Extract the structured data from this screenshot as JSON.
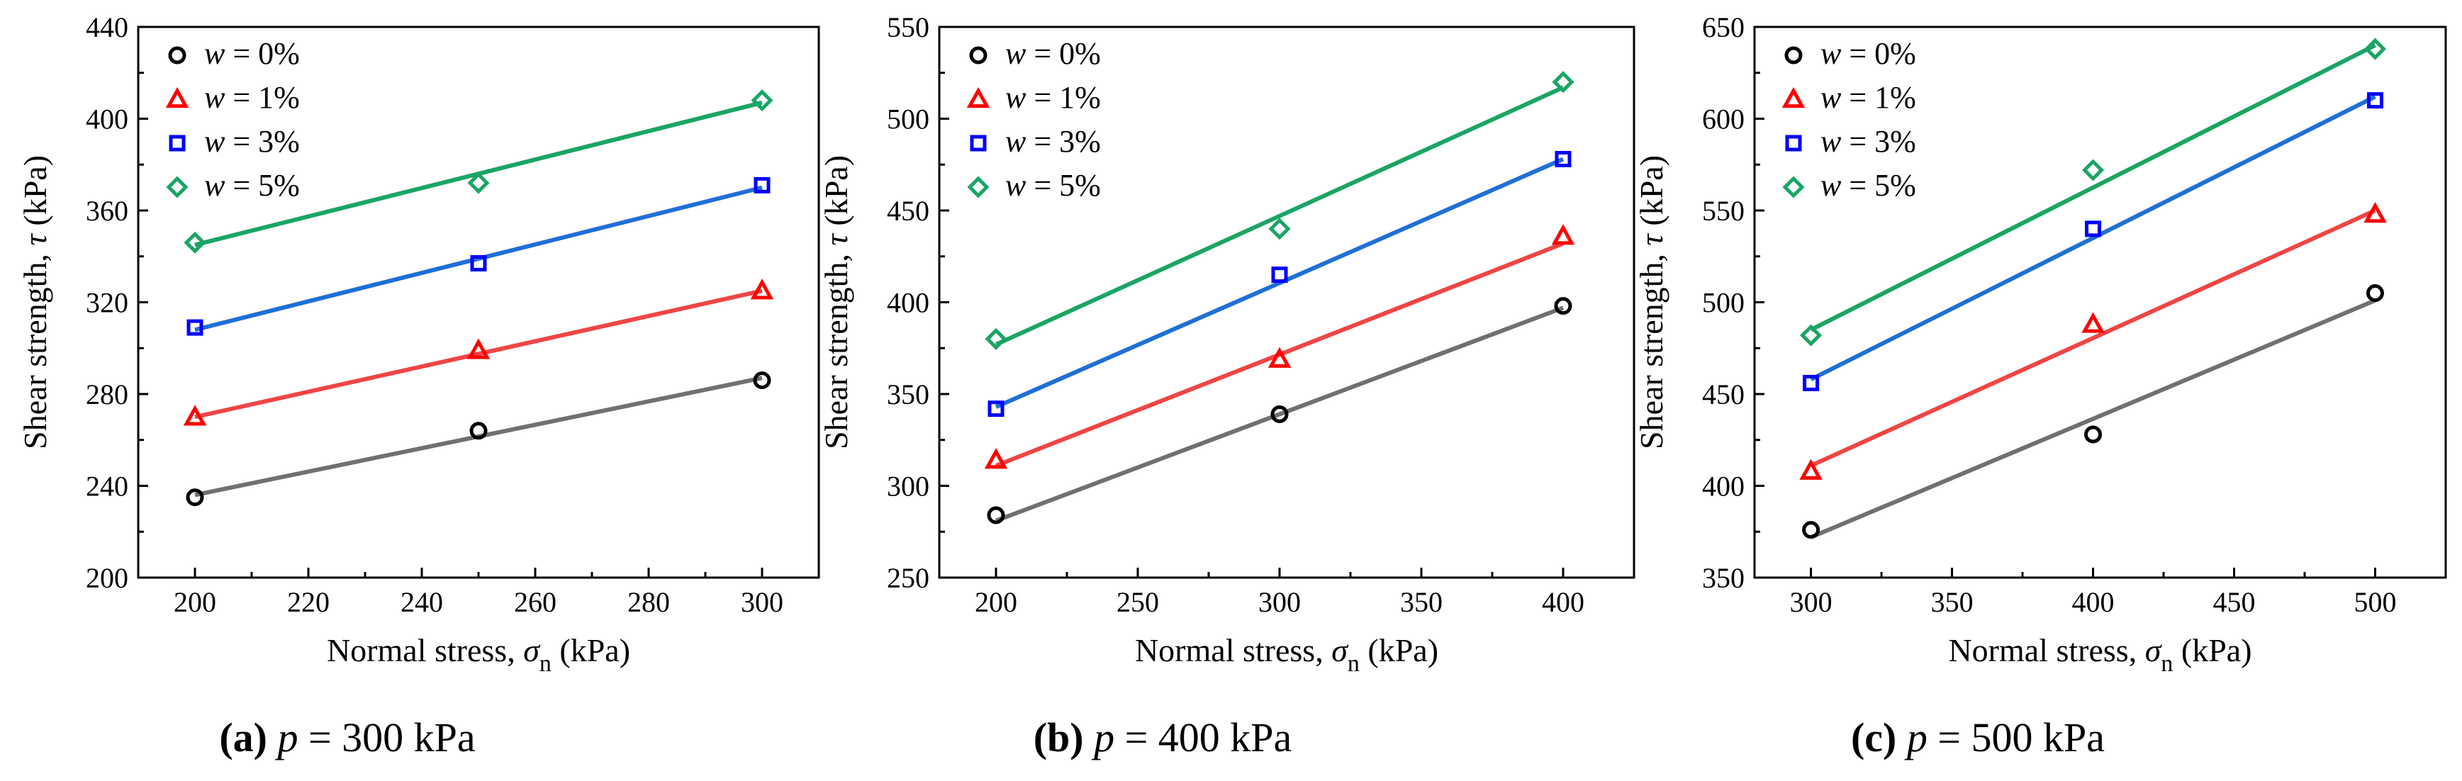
{
  "figure": {
    "panels": [
      {
        "caption": {
          "label": "(a)",
          "var": "p",
          "rest": " = 300 kPa"
        },
        "xlabel": {
          "prefix": "Normal stress, ",
          "sym": "σ",
          "sub": "n",
          "unit": " (kPa)"
        },
        "ylabel": {
          "prefix": "Shear strength, ",
          "sym": "τ",
          "unit": " (kPa)"
        }
      },
      {
        "caption": {
          "label": "(b)",
          "var": "p",
          "rest": " = 400 kPa"
        },
        "xlabel": {
          "prefix": "Normal stress, ",
          "sym": "σ",
          "sub": "n",
          "unit": " (kPa)"
        },
        "ylabel": {
          "prefix": "Shear strength, ",
          "sym": "τ",
          "unit": " (kPa)"
        }
      },
      {
        "caption": {
          "label": "(c)",
          "var": "p",
          "rest": " = 500 kPa"
        },
        "xlabel": {
          "prefix": "Normal stress, ",
          "sym": "σ",
          "sub": "n",
          "unit": " (kPa)"
        },
        "ylabel": {
          "prefix": "Shear strength, ",
          "sym": "τ",
          "unit": " (kPa)"
        }
      }
    ]
  },
  "chart_data": [
    {
      "type": "scatter",
      "title": "(a) p = 300 kPa",
      "xlabel": "Normal stress, σn (kPa)",
      "ylabel": "Shear strength, τ (kPa)",
      "xlim": [
        190,
        310
      ],
      "ylim": [
        200,
        440
      ],
      "xticks": [
        200,
        220,
        240,
        260,
        280,
        300
      ],
      "yticks": [
        200,
        240,
        280,
        320,
        360,
        400,
        440
      ],
      "legend_position": "top-left",
      "series": [
        {
          "name": "w = 0%",
          "var": "w",
          "value_label": " = 0%",
          "marker": "circle",
          "marker_color": "#000000",
          "line_color": "#707070",
          "x": [
            200,
            250,
            300
          ],
          "y": [
            235,
            264,
            286
          ],
          "fit": [
            [
              200,
              236
            ],
            [
              300,
              287
            ]
          ]
        },
        {
          "name": "w = 1%",
          "var": "w",
          "value_label": " = 1%",
          "marker": "triangle",
          "marker_color": "#ff0000",
          "line_color": "#f04545",
          "x": [
            200,
            250,
            300
          ],
          "y": [
            270,
            299,
            325
          ],
          "fit": [
            [
              200,
              270
            ],
            [
              300,
              325
            ]
          ]
        },
        {
          "name": "w = 3%",
          "var": "w",
          "value_label": " = 3%",
          "marker": "square",
          "marker_color": "#0000ff",
          "line_color": "#1f6fd6",
          "x": [
            200,
            250,
            300
          ],
          "y": [
            309,
            337,
            371
          ],
          "fit": [
            [
              200,
              308
            ],
            [
              300,
              370
            ]
          ]
        },
        {
          "name": "w = 5%",
          "var": "w",
          "value_label": " = 5%",
          "marker": "diamond",
          "marker_color": "#1aa564",
          "line_color": "#1aa564",
          "x": [
            200,
            250,
            300
          ],
          "y": [
            346,
            372,
            408
          ],
          "fit": [
            [
              200,
              345
            ],
            [
              300,
              407
            ]
          ]
        }
      ]
    },
    {
      "type": "scatter",
      "title": "(b) p = 400 kPa",
      "xlabel": "Normal stress, σn (kPa)",
      "ylabel": "Shear strength, τ (kPa)",
      "xlim": [
        180,
        425
      ],
      "ylim": [
        250,
        550
      ],
      "xticks": [
        200,
        250,
        300,
        350,
        400
      ],
      "yticks": [
        250,
        300,
        350,
        400,
        450,
        500,
        550
      ],
      "legend_position": "top-left",
      "series": [
        {
          "name": "w = 0%",
          "var": "w",
          "value_label": " = 0%",
          "marker": "circle",
          "marker_color": "#000000",
          "line_color": "#707070",
          "x": [
            200,
            300,
            400
          ],
          "y": [
            284,
            339,
            398
          ],
          "fit": [
            [
              200,
              281
            ],
            [
              400,
              397
            ]
          ]
        },
        {
          "name": "w = 1%",
          "var": "w",
          "value_label": " = 1%",
          "marker": "triangle",
          "marker_color": "#ff0000",
          "line_color": "#f04545",
          "x": [
            200,
            300,
            400
          ],
          "y": [
            314,
            369,
            436
          ],
          "fit": [
            [
              200,
              311
            ],
            [
              400,
              432
            ]
          ]
        },
        {
          "name": "w = 3%",
          "var": "w",
          "value_label": " = 3%",
          "marker": "square",
          "marker_color": "#0000ff",
          "line_color": "#1f6fd6",
          "x": [
            200,
            300,
            400
          ],
          "y": [
            342,
            415,
            478
          ],
          "fit": [
            [
              200,
              343
            ],
            [
              400,
              478
            ]
          ]
        },
        {
          "name": "w = 5%",
          "var": "w",
          "value_label": " = 5%",
          "marker": "diamond",
          "marker_color": "#1aa564",
          "line_color": "#1aa564",
          "x": [
            200,
            300,
            400
          ],
          "y": [
            380,
            440,
            520
          ],
          "fit": [
            [
              200,
              377
            ],
            [
              400,
              517
            ]
          ]
        }
      ]
    },
    {
      "type": "scatter",
      "title": "(c) p = 500 kPa",
      "xlabel": "Normal stress, σn (kPa)",
      "ylabel": "Shear strength, τ (kPa)",
      "xlim": [
        280,
        525
      ],
      "ylim": [
        350,
        650
      ],
      "xticks": [
        300,
        350,
        400,
        450,
        500
      ],
      "yticks": [
        350,
        400,
        450,
        500,
        550,
        600,
        650
      ],
      "legend_position": "top-left",
      "series": [
        {
          "name": "w = 0%",
          "var": "w",
          "value_label": " = 0%",
          "marker": "circle",
          "marker_color": "#000000",
          "line_color": "#707070",
          "x": [
            300,
            400,
            500
          ],
          "y": [
            376,
            428,
            505
          ],
          "fit": [
            [
              300,
              372
            ],
            [
              500,
              501
            ]
          ]
        },
        {
          "name": "w = 1%",
          "var": "w",
          "value_label": " = 1%",
          "marker": "triangle",
          "marker_color": "#ff0000",
          "line_color": "#f04545",
          "x": [
            300,
            400,
            500
          ],
          "y": [
            408,
            488,
            548
          ],
          "fit": [
            [
              300,
              411
            ],
            [
              500,
              550
            ]
          ]
        },
        {
          "name": "w = 3%",
          "var": "w",
          "value_label": " = 3%",
          "marker": "square",
          "marker_color": "#0000ff",
          "line_color": "#1f6fd6",
          "x": [
            300,
            400,
            500
          ],
          "y": [
            456,
            540,
            610
          ],
          "fit": [
            [
              300,
              458
            ],
            [
              500,
              612
            ]
          ]
        },
        {
          "name": "w = 5%",
          "var": "w",
          "value_label": " = 5%",
          "marker": "diamond",
          "marker_color": "#1aa564",
          "line_color": "#1aa564",
          "x": [
            300,
            400,
            500
          ],
          "y": [
            482,
            572,
            638
          ],
          "fit": [
            [
              300,
              485
            ],
            [
              500,
              640
            ]
          ]
        }
      ]
    }
  ]
}
